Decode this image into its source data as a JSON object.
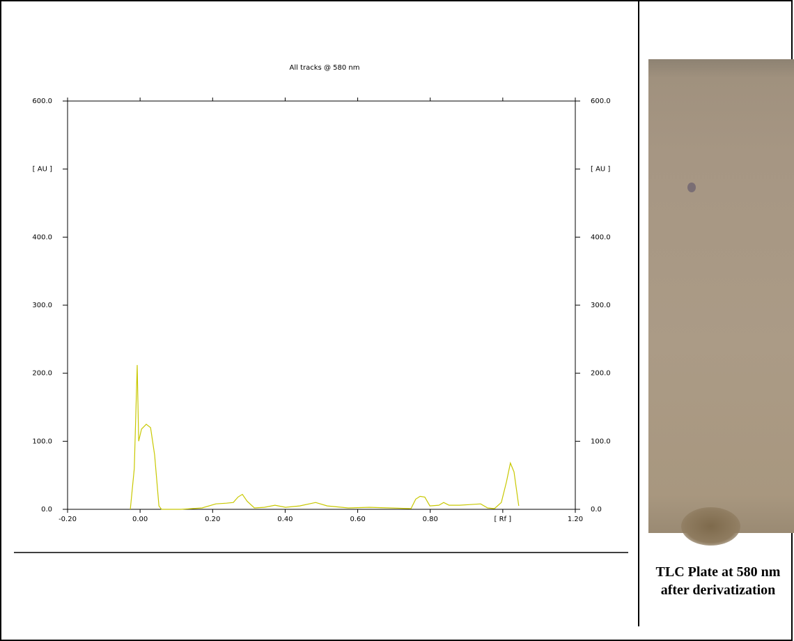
{
  "chart_data": {
    "type": "line",
    "title": "All tracks @ 580 nm",
    "x": [
      -0.027,
      -0.016,
      -0.008,
      -0.004,
      0.004,
      0.017,
      0.029,
      0.04,
      0.052,
      0.059,
      0.113,
      0.171,
      0.209,
      0.238,
      0.257,
      0.27,
      0.282,
      0.295,
      0.315,
      0.343,
      0.372,
      0.401,
      0.44,
      0.484,
      0.516,
      0.574,
      0.632,
      0.689,
      0.747,
      0.76,
      0.772,
      0.785,
      0.799,
      0.824,
      0.837,
      0.852,
      0.881,
      0.91,
      0.939,
      0.958,
      0.977,
      0.996,
      1.01,
      1.021,
      1.031,
      1.044
    ],
    "values": [
      0,
      60,
      212,
      100,
      118,
      125,
      120,
      80,
      5,
      0,
      0,
      2,
      8,
      9,
      10,
      18,
      22,
      12,
      2,
      3,
      6,
      3,
      5,
      10,
      5,
      2,
      3,
      2,
      1,
      15,
      19,
      18,
      5,
      6,
      10,
      6,
      6,
      7,
      8,
      2,
      1,
      10,
      40,
      68,
      55,
      5
    ],
    "color": "#c8c800",
    "xlim": [
      -0.2,
      1.2
    ],
    "xticks": [
      {
        "value": -0.2,
        "label": "-0.20"
      },
      {
        "value": 0,
        "label": "0.00"
      },
      {
        "value": 0.2,
        "label": "0.20"
      },
      {
        "value": 0.4,
        "label": "0.40"
      },
      {
        "value": 0.6,
        "label": "0.60"
      },
      {
        "value": 0.8,
        "label": "0.80"
      },
      {
        "value": 1.0,
        "label": "[ Rf ]"
      },
      {
        "value": 1.2,
        "label": "1.20"
      }
    ],
    "ylim": [
      0,
      600
    ],
    "yticks": [
      {
        "value": 0,
        "label": "0.0"
      },
      {
        "value": 100,
        "label": "100.0"
      },
      {
        "value": 200,
        "label": "200.0"
      },
      {
        "value": 300,
        "label": "300.0"
      },
      {
        "value": 400,
        "label": "400.0"
      },
      {
        "value": 500,
        "label": "[ AU ]"
      },
      {
        "value": 600,
        "label": "600.0"
      }
    ],
    "y2lim": [
      0,
      600
    ],
    "y2ticks": [
      {
        "value": 0,
        "label": "0.0"
      },
      {
        "value": 100,
        "label": "100.0"
      },
      {
        "value": 200,
        "label": "200.0"
      },
      {
        "value": 300,
        "label": "300.0"
      },
      {
        "value": 400,
        "label": "400.0"
      },
      {
        "value": 500,
        "label": "[ AU ]"
      },
      {
        "value": 600,
        "label": "600.0"
      }
    ]
  },
  "caption": "TLC Plate at 580 nm after derivatization"
}
